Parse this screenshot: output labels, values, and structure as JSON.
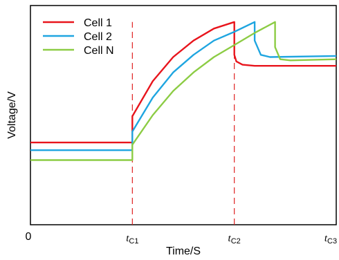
{
  "chart_data": {
    "type": "line",
    "xlabel": "Time/S",
    "ylabel": "Voltage/V",
    "origin_label": "0",
    "x_ticks": [
      {
        "main": "t",
        "sub": "C1",
        "x": 1
      },
      {
        "main": "t",
        "sub": "C2",
        "x": 2
      },
      {
        "main": "t",
        "sub": "C3",
        "x": 3
      }
    ],
    "xlim": [
      0,
      3
    ],
    "ylim": [
      0,
      10
    ],
    "grid": false,
    "legend_position": "top-left",
    "colors": {
      "axis": "#000000",
      "marker_line": "#e02020"
    },
    "markers": [
      1,
      2
    ],
    "series": [
      {
        "name": "Cell 1",
        "color": "#e8141c",
        "x": [
          0,
          0.5,
          1.0,
          1.0,
          1.2,
          1.4,
          1.6,
          1.8,
          2.0,
          2.0,
          2.02,
          2.08,
          2.2,
          3.0
        ],
        "y": [
          3.75,
          3.75,
          3.75,
          4.95,
          6.55,
          7.65,
          8.4,
          8.95,
          9.25,
          7.75,
          7.45,
          7.3,
          7.25,
          7.25
        ]
      },
      {
        "name": "Cell 2",
        "color": "#1ea5e0",
        "x": [
          0,
          0.5,
          1.0,
          1.0,
          1.2,
          1.4,
          1.6,
          1.8,
          2.0,
          2.2,
          2.2,
          2.26,
          2.35,
          3.0
        ],
        "y": [
          3.4,
          3.4,
          3.4,
          4.25,
          5.8,
          6.95,
          7.75,
          8.4,
          8.8,
          9.25,
          8.4,
          7.75,
          7.65,
          7.7
        ]
      },
      {
        "name": "Cell N",
        "color": "#8ccc44",
        "x": [
          0,
          0.5,
          1.0,
          1.0,
          1.2,
          1.4,
          1.6,
          1.8,
          2.0,
          2.2,
          2.4,
          2.4,
          2.45,
          2.55,
          3.0
        ],
        "y": [
          2.95,
          2.95,
          2.95,
          3.65,
          5.0,
          6.1,
          6.95,
          7.65,
          8.2,
          8.75,
          9.25,
          8.1,
          7.55,
          7.5,
          7.55
        ]
      }
    ]
  }
}
